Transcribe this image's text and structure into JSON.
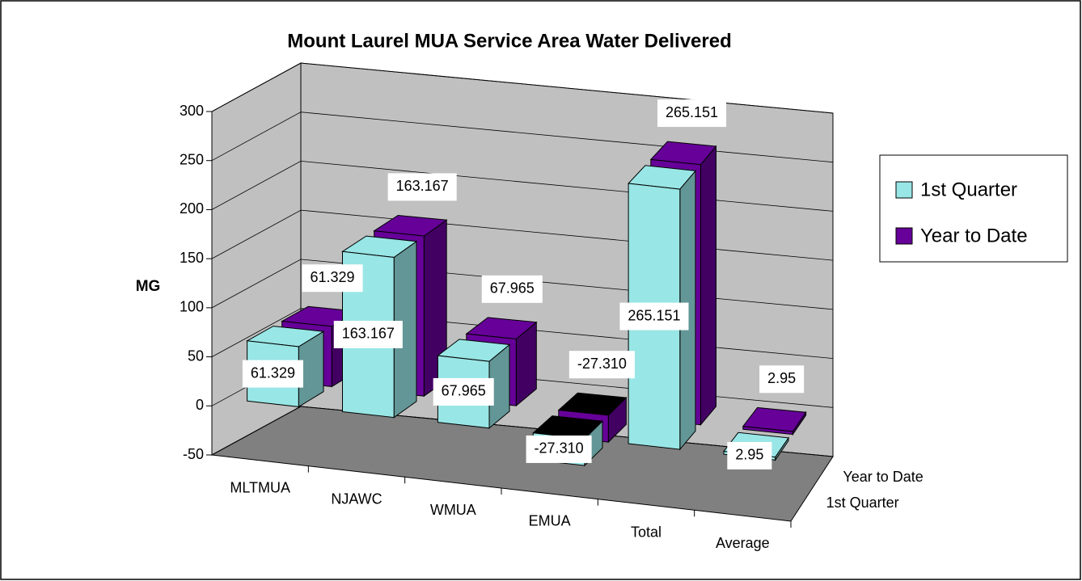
{
  "chart_data": {
    "type": "bar3d",
    "title": "Mount Laurel MUA Service Area Water Delivered",
    "y_label": "MG",
    "categories": [
      "MLTMUA",
      "NJAWC",
      "WMUA",
      "EMUA",
      "Total",
      "Average"
    ],
    "series": [
      {
        "name": "1st Quarter",
        "color": "#99e6e6",
        "values": [
          61.329,
          163.167,
          67.965,
          -27.31,
          265.151,
          2.95
        ],
        "value_labels": [
          "61.329",
          "163.167",
          "67.965",
          "-27.310",
          "265.151",
          "2.95"
        ]
      },
      {
        "name": "Year to Date",
        "color": "#660099",
        "values": [
          61.329,
          163.167,
          67.965,
          -27.31,
          265.151,
          2.95
        ],
        "value_labels": [
          "61.329",
          "163.167",
          "67.965",
          "-27.310",
          "265.151",
          "2.95"
        ]
      }
    ],
    "ylim": [
      -50,
      300
    ],
    "yticks": [
      -50,
      0,
      50,
      100,
      150,
      200,
      250,
      300
    ],
    "grid": true,
    "legend": "right"
  }
}
